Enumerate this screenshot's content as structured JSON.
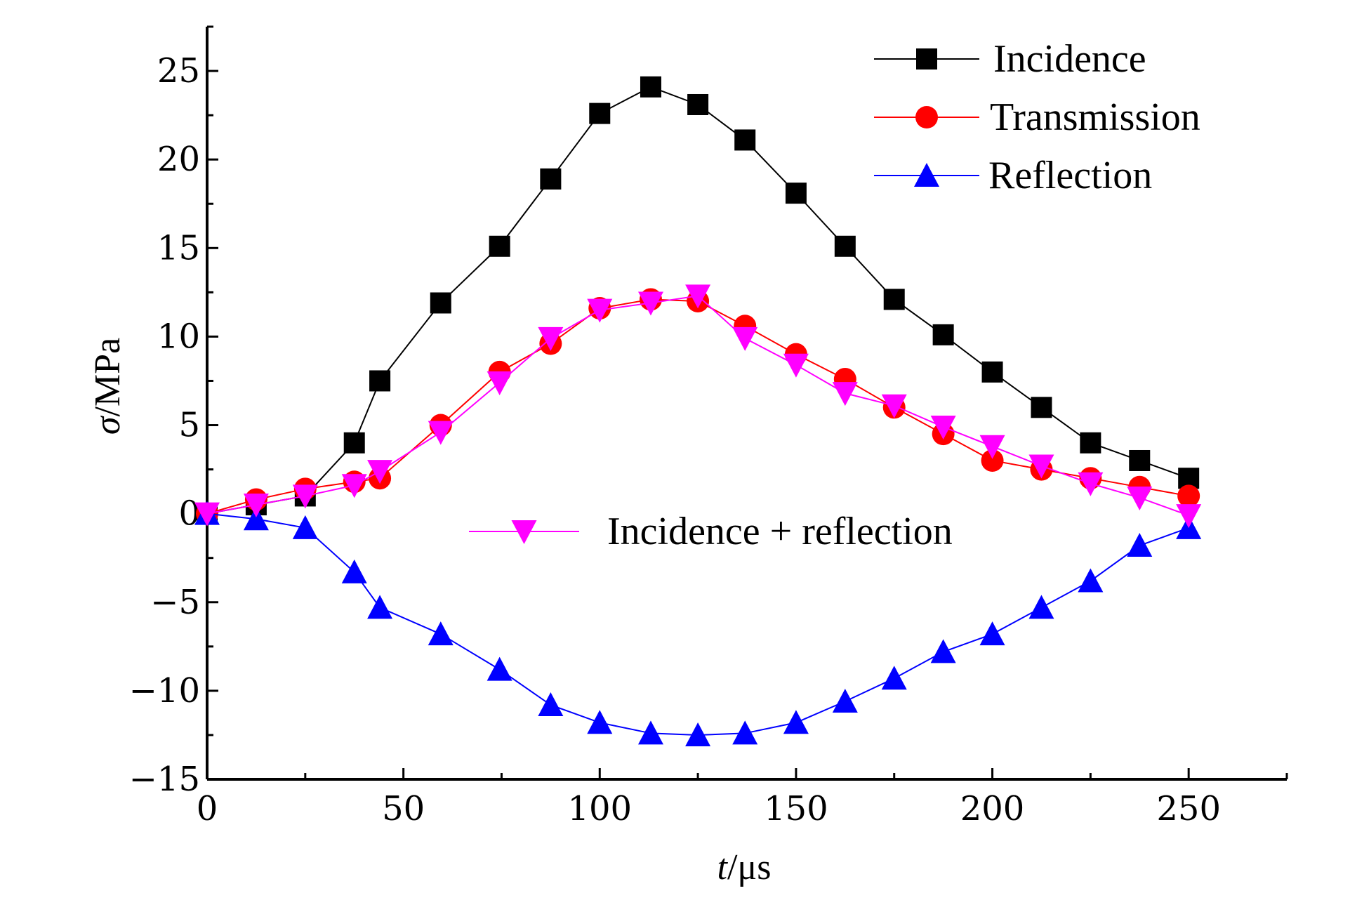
{
  "chart_data": {
    "type": "line",
    "xlabel": {
      "italic": "t",
      "unit": "/μs"
    },
    "ylabel": {
      "italic": "σ",
      "unit": "/MPa"
    },
    "xlim": [
      0,
      275
    ],
    "ylim": [
      -15,
      27.5
    ],
    "xticks": [
      0,
      50,
      100,
      150,
      200,
      250
    ],
    "yticks": [
      -15,
      -10,
      -5,
      0,
      5,
      10,
      15,
      20,
      25
    ],
    "grid": false,
    "legend_position": "top-right",
    "series": [
      {
        "name": "Incidence",
        "color": "#000000",
        "marker": "square",
        "x": [
          0,
          12.5,
          25,
          37.5,
          44,
          59.5,
          74.5,
          87.5,
          100,
          113,
          125,
          137,
          150,
          162.5,
          175,
          187.5,
          200,
          212.5,
          225,
          237.5,
          250
        ],
        "y": [
          0,
          0.5,
          1,
          4,
          7.5,
          11.9,
          15.1,
          18.9,
          22.6,
          24.1,
          23.1,
          21.1,
          18.1,
          15.1,
          12.1,
          10.1,
          8,
          6,
          4,
          3,
          2
        ]
      },
      {
        "name": "Transmission",
        "color": "#ff0000",
        "marker": "circle",
        "x": [
          0,
          12.5,
          25,
          37.5,
          44,
          59.5,
          74.5,
          87.5,
          100,
          113,
          125,
          137,
          150,
          162.5,
          175,
          187.5,
          200,
          212.5,
          225,
          237.5,
          250
        ],
        "y": [
          0,
          0.8,
          1.4,
          1.8,
          2,
          5,
          8,
          9.6,
          11.6,
          12.1,
          12,
          10.6,
          9,
          7.6,
          6,
          4.5,
          3,
          2.5,
          2,
          1.5,
          1
        ]
      },
      {
        "name": "Reflection",
        "color": "#0000ff",
        "marker": "triangle-up",
        "x": [
          0,
          12.5,
          25,
          37.5,
          44,
          59.5,
          74.5,
          87.5,
          100,
          113,
          125,
          137,
          150,
          162.5,
          175,
          187.5,
          200,
          212.5,
          225,
          237.5,
          250
        ],
        "y": [
          0,
          -0.3,
          -0.8,
          -3.3,
          -5.3,
          -6.8,
          -8.8,
          -10.8,
          -11.8,
          -12.4,
          -12.5,
          -12.4,
          -11.8,
          -10.6,
          -9.3,
          -7.8,
          -6.8,
          -5.3,
          -3.8,
          -1.8,
          -0.8
        ]
      },
      {
        "name": "Incidence + reflection",
        "color": "#ff00ff",
        "marker": "triangle-down",
        "x": [
          0,
          12.5,
          25,
          37.5,
          44,
          59.5,
          74.5,
          87.5,
          100,
          113,
          125,
          137,
          150,
          162.5,
          175,
          187.5,
          200,
          212.5,
          225,
          237.5,
          250
        ],
        "y": [
          0,
          0.5,
          1,
          1.6,
          2.4,
          4.6,
          7.4,
          9.9,
          11.5,
          11.9,
          12.3,
          9.9,
          8.4,
          6.8,
          6.1,
          4.9,
          3.8,
          2.7,
          1.7,
          0.9,
          -0.1
        ]
      }
    ]
  }
}
